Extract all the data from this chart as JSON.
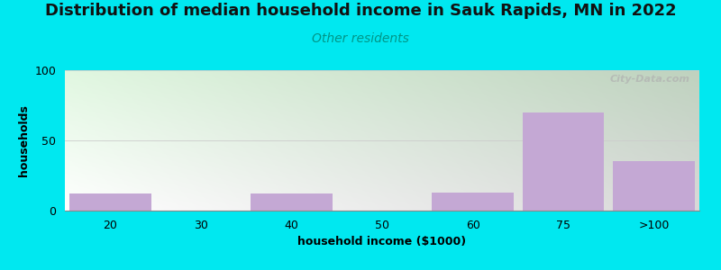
{
  "title": "Distribution of median household income in Sauk Rapids, MN in 2022",
  "subtitle": "Other residents",
  "xlabel": "household income ($1000)",
  "ylabel": "households",
  "categories": [
    "20",
    "30",
    "40",
    "50",
    "60",
    "75",
    ">100"
  ],
  "values": [
    12,
    0,
    12,
    0,
    13,
    70,
    35
  ],
  "bar_color": "#c4a8d4",
  "bar_positions": [
    1,
    2,
    3,
    4,
    5,
    6,
    7
  ],
  "bar_width": 0.9,
  "ylim": [
    0,
    100
  ],
  "yticks": [
    0,
    50,
    100
  ],
  "background_outer": "#00e8f0",
  "title_fontsize": 13,
  "subtitle_fontsize": 10,
  "subtitle_color": "#009688",
  "axis_label_fontsize": 9,
  "tick_fontsize": 9,
  "watermark_text": "City-Data.com",
  "figsize": [
    8.0,
    3.0
  ],
  "dpi": 100
}
